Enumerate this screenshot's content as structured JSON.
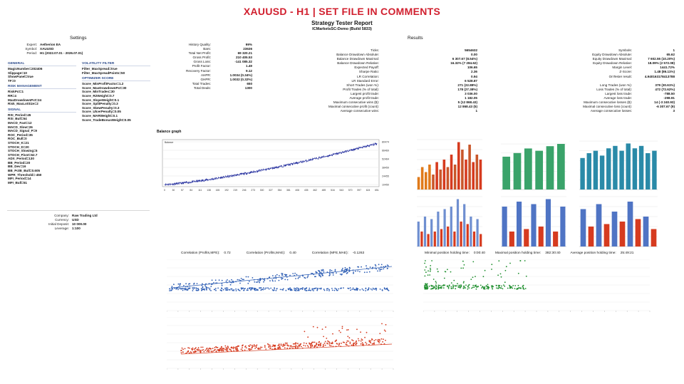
{
  "banner": "XAUUSD - H1 | SET FILE IN COMMENTS",
  "report": {
    "title": "Strategy Tester Report",
    "subtitle": "ICMarketsSC-Demo (Build 5833)"
  },
  "settings": {
    "heading": "Settings",
    "expert": {
      "label": "Expert:",
      "value": "Aetherion EA"
    },
    "symbol": {
      "label": "Symbol:",
      "value": "XAUUSD"
    },
    "period": {
      "label": "Period:",
      "value": "H1 (2022.07.01 - 2026.07.01)"
    },
    "groups_left": [
      {
        "title": "GENERAL",
        "items": [
          "MagicNumber=202406",
          "Slippage=10",
          "ShowPanel=true",
          "TF=0"
        ]
      },
      {
        "title": "RISK MANAGEMENT",
        "items": [
          "RiskPct=1",
          "RR=4",
          "MaxDrawdownPct=24",
          "Risk_MaxLotSize=2"
        ]
      },
      {
        "title": "SIGNAL",
        "items": [
          "RSI_Period=45",
          "RSI_Bull=54",
          "MACD_Fast=12",
          "MACD_Slow=26",
          "MACD_Signal_P=9",
          "ROC_Period=35",
          "ROC_Bull=0",
          "STOCH_K=21",
          "STOCH_D=20",
          "STOCH_Slowing=5",
          "STOCH_Pivot=62.7",
          "ADX_Period=130",
          "BB_Period=20",
          "BB_Dev=16",
          "BB_PctB_Bull=0.605",
          "WPR_Threshold=-450",
          "MFI_Period=14",
          "MFI_Bull=51"
        ]
      }
    ],
    "groups_right": [
      {
        "title": "VOLATILITY FILTER",
        "items": [
          "Filter_MaxSpread=true",
          "Filter_MaxSpreadPoints=50"
        ]
      },
      {
        "title": "OPTIMIZER SCORE",
        "items": [
          "Score_MinProfitFactor=1.2",
          "Score_MaxDrawdownPct=30",
          "Score_MinTrades=30",
          "Score_R2Weight=0.7",
          "Score_SlopeWeight=0.1",
          "Score_SplitPenalty=0.3",
          "Score_SkewPenalty=0.3",
          "Score_UlcerPenalty=0.05",
          "Score_MARWeight=0.1",
          "Score_TradeBonusWeight=0.05"
        ]
      }
    ],
    "footer": [
      {
        "label": "Company:",
        "value": "Raw Trading Ltd"
      },
      {
        "label": "Currency:",
        "value": "USD"
      },
      {
        "label": "Initial Deposit:",
        "value": "10 000.00"
      },
      {
        "label": "Leverage:",
        "value": "1:100"
      }
    ]
  },
  "quality": [
    {
      "label": "History Quality:",
      "value": "99%"
    },
    {
      "label": "Bars:",
      "value": "23636"
    },
    {
      "label": "Total Net Profit:",
      "value": "69 320.21"
    },
    {
      "label": "Gross Profit:",
      "value": "210 405.53"
    },
    {
      "label": "Gross Loss:",
      "value": "-141 085.32"
    },
    {
      "label": "Profit Factor:",
      "value": "1.49"
    },
    {
      "label": "Recovery Factor:",
      "value": "9.12"
    },
    {
      "label": "AHPR:",
      "value": "1.0034 (0.34%)"
    },
    {
      "label": "GHPR:",
      "value": "1.0032 (0.32%)"
    },
    {
      "label": "Total Trades:",
      "value": "650"
    },
    {
      "label": "Total Deals:",
      "value": "1300"
    }
  ],
  "results": {
    "heading": "Results",
    "col_a": [
      {
        "label": "Ticks:",
        "value": "5654632"
      },
      {
        "label": "Balance Drawdown Absolute:",
        "value": "0.00"
      },
      {
        "label": "Balance Drawdown Maximal:",
        "value": "6 307.67 (8.54%)"
      },
      {
        "label": "Balance Drawdown Relative:",
        "value": "16.32% (7 284.62)"
      },
      {
        "label": "Expected Payoff:",
        "value": "106.65"
      },
      {
        "label": "Sharpe Ratio:",
        "value": "2.36"
      },
      {
        "label": "LR Correlation:",
        "value": "0.94"
      },
      {
        "label": "LR Standard Error:",
        "value": "6 528.87"
      },
      {
        "label": "Short Trades (won %):",
        "value": "271 (22.88%)"
      },
      {
        "label": "Profit Trades (% of total):",
        "value": "178 (27.38%)"
      },
      {
        "label": "Largest profit trade:",
        "value": "3 036.00"
      },
      {
        "label": "Average profit trade:",
        "value": "1 182.05"
      },
      {
        "label": "Maximum consecutive wins ($):",
        "value": "5 (12 868.43)"
      },
      {
        "label": "Maximal consecutive profit (count):",
        "value": "12 868.43 (5)"
      },
      {
        "label": "Average consecutive wins:",
        "value": "1"
      }
    ],
    "col_b": [
      {
        "label": "Symbols:",
        "value": "1"
      },
      {
        "label": "Equity Drawdown Absolute:",
        "value": "65.62"
      },
      {
        "label": "Equity Drawdown Maximal:",
        "value": "7 602.55 (10.20%)"
      },
      {
        "label": "Equity Drawdown Relative:",
        "value": "18.09% (2 572.08)"
      },
      {
        "label": "Margin Level:",
        "value": "1441.72%"
      },
      {
        "label": "Z-Score:",
        "value": "1.48 (86.11%)"
      },
      {
        "label": "OnTester result:",
        "value": "4.940163178413788"
      },
      {
        "label": "",
        "value": ""
      },
      {
        "label": "Long Trades (won %):",
        "value": "379 (30.61%)"
      },
      {
        "label": "Loss Trades (% of total):",
        "value": "472 (72.62%)"
      },
      {
        "label": "Largest loss trade:",
        "value": "-788.50"
      },
      {
        "label": "Average loss trade:",
        "value": "-298.91"
      },
      {
        "label": "Maximum consecutive losses ($):",
        "value": "14 (-3 240.93)"
      },
      {
        "label": "Maximal consecutive loss (count):",
        "value": "-6 307.67 (9)"
      },
      {
        "label": "Average consecutive losses:",
        "value": "3"
      }
    ]
  },
  "balance_graph": {
    "title": "Balance graph",
    "legend": "Balance",
    "y_ticks": [
      "80474",
      "66469",
      "52464",
      "38459",
      "24455",
      "10450"
    ],
    "x_ticks": [
      "0",
      "30",
      "57",
      "84",
      "111",
      "138",
      "165",
      "192",
      "219",
      "246",
      "273",
      "300",
      "327",
      "354",
      "381",
      "408",
      "435",
      "462",
      "489",
      "516",
      "543",
      "570",
      "597",
      "624",
      "651"
    ],
    "ylim": [
      10450,
      80474
    ],
    "xlim": [
      0,
      651
    ],
    "color": "#1f2a9c"
  },
  "correlation": {
    "items": [
      {
        "label": "Correlation (Profits,MFE):",
        "value": "0.72"
      },
      {
        "label": "Correlation (Profits,MAE):",
        "value": "0.40"
      },
      {
        "label": "Correlation (MFE,MAE):",
        "value": "-0.1263"
      }
    ],
    "holding": [
      {
        "label": "Minimal position holding time:",
        "value": "0:00:40"
      },
      {
        "label": "Maximal position holding time:",
        "value": "382:30:40"
      },
      {
        "label": "Average position holding time:",
        "value": "25:49:21"
      }
    ]
  },
  "colors": {
    "banner": "#d11f2e",
    "group_heading": "#2b4a8b",
    "blue": "#2f5fb5",
    "red": "#d63b1f",
    "green": "#1f8f2e",
    "teal": "#2a8aa8",
    "orange": "#e07a1a"
  }
}
